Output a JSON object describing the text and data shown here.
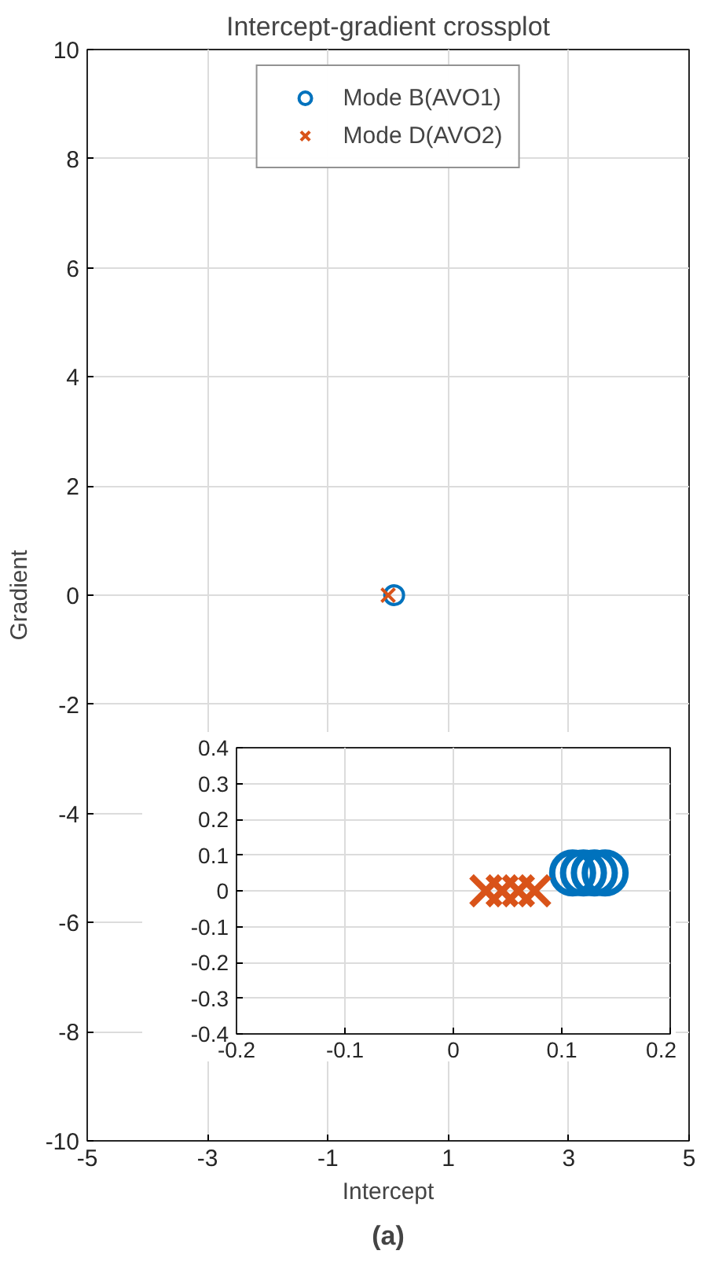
{
  "chart_data": [
    {
      "type": "scatter",
      "title": "Intercept-gradient crossplot",
      "xlabel": "Intercept",
      "ylabel": "Gradient",
      "annotations": [
        "(a)"
      ],
      "xlim": [
        -5,
        5
      ],
      "xticks": [
        -5,
        -3,
        -1,
        1,
        3,
        5
      ],
      "ylim": [
        -10,
        10
      ],
      "yticks": [
        -10,
        -8,
        -6,
        -4,
        -2,
        0,
        2,
        4,
        6,
        8,
        10
      ],
      "grid": true,
      "legend": "top",
      "series": [
        {
          "name": "Mode B(AVO1)",
          "color": "#0072bd",
          "marker": "circle",
          "x": [
            0.1
          ],
          "values": [
            0
          ]
        },
        {
          "name": "Mode D(AVO2)",
          "color": "#d95319",
          "marker": "cross",
          "x": [
            0
          ],
          "values": [
            0
          ]
        }
      ]
    },
    {
      "type": "scatter",
      "xlim": [
        -0.2,
        0.2
      ],
      "xticks": [
        -0.2,
        -0.1,
        0,
        0.1,
        0.2
      ],
      "ylim": [
        -0.4,
        0.4
      ],
      "yticks": [
        -0.4,
        -0.3,
        -0.2,
        -0.1,
        0,
        0.1,
        0.2,
        0.3,
        0.4
      ],
      "grid": true,
      "series": [
        {
          "color": "#0072bd",
          "marker": "circle",
          "x": [
            0.11,
            0.12,
            0.13,
            0.14
          ],
          "values": [
            0.05,
            0.05,
            0.05,
            0.05
          ]
        },
        {
          "color": "#d95319",
          "marker": "cross",
          "x": [
            0.03,
            0.045,
            0.06,
            0.075
          ],
          "values": [
            0,
            0,
            0,
            0
          ]
        }
      ]
    }
  ]
}
